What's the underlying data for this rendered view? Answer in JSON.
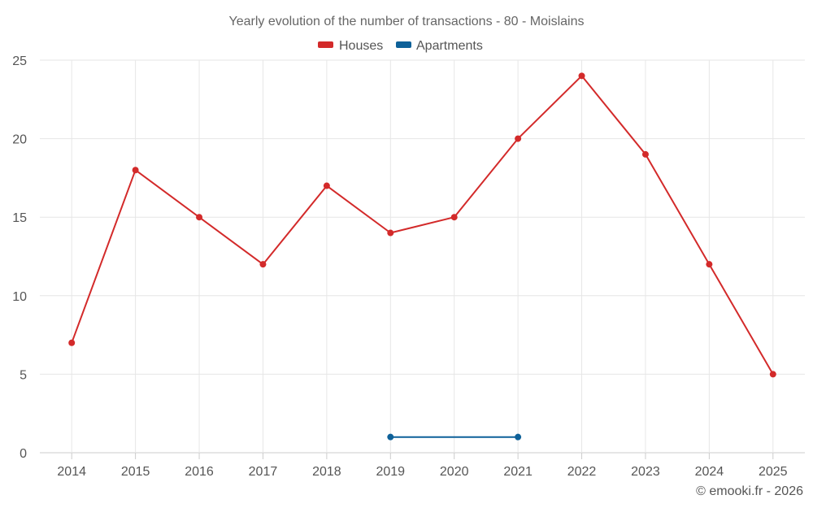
{
  "chart_data": {
    "type": "line",
    "title": "Yearly evolution of the number of transactions - 80 - Moislains",
    "categories": [
      "2014",
      "2015",
      "2016",
      "2017",
      "2018",
      "2019",
      "2020",
      "2021",
      "2022",
      "2023",
      "2024",
      "2025"
    ],
    "series": [
      {
        "name": "Houses",
        "color": "#d32a2a",
        "values": [
          7,
          18,
          15,
          12,
          17,
          14,
          15,
          20,
          24,
          19,
          12,
          5
        ]
      },
      {
        "name": "Apartments",
        "color": "#0e6199",
        "values": [
          null,
          null,
          null,
          null,
          null,
          1,
          null,
          1,
          null,
          null,
          null,
          null
        ]
      }
    ],
    "yticks": [
      0,
      5,
      10,
      15,
      20,
      25
    ],
    "ylim": [
      0,
      25
    ],
    "grid": true,
    "legend_position": "top-center",
    "xlabel": "",
    "ylabel": ""
  },
  "credit": "© emooki.fr - 2026"
}
